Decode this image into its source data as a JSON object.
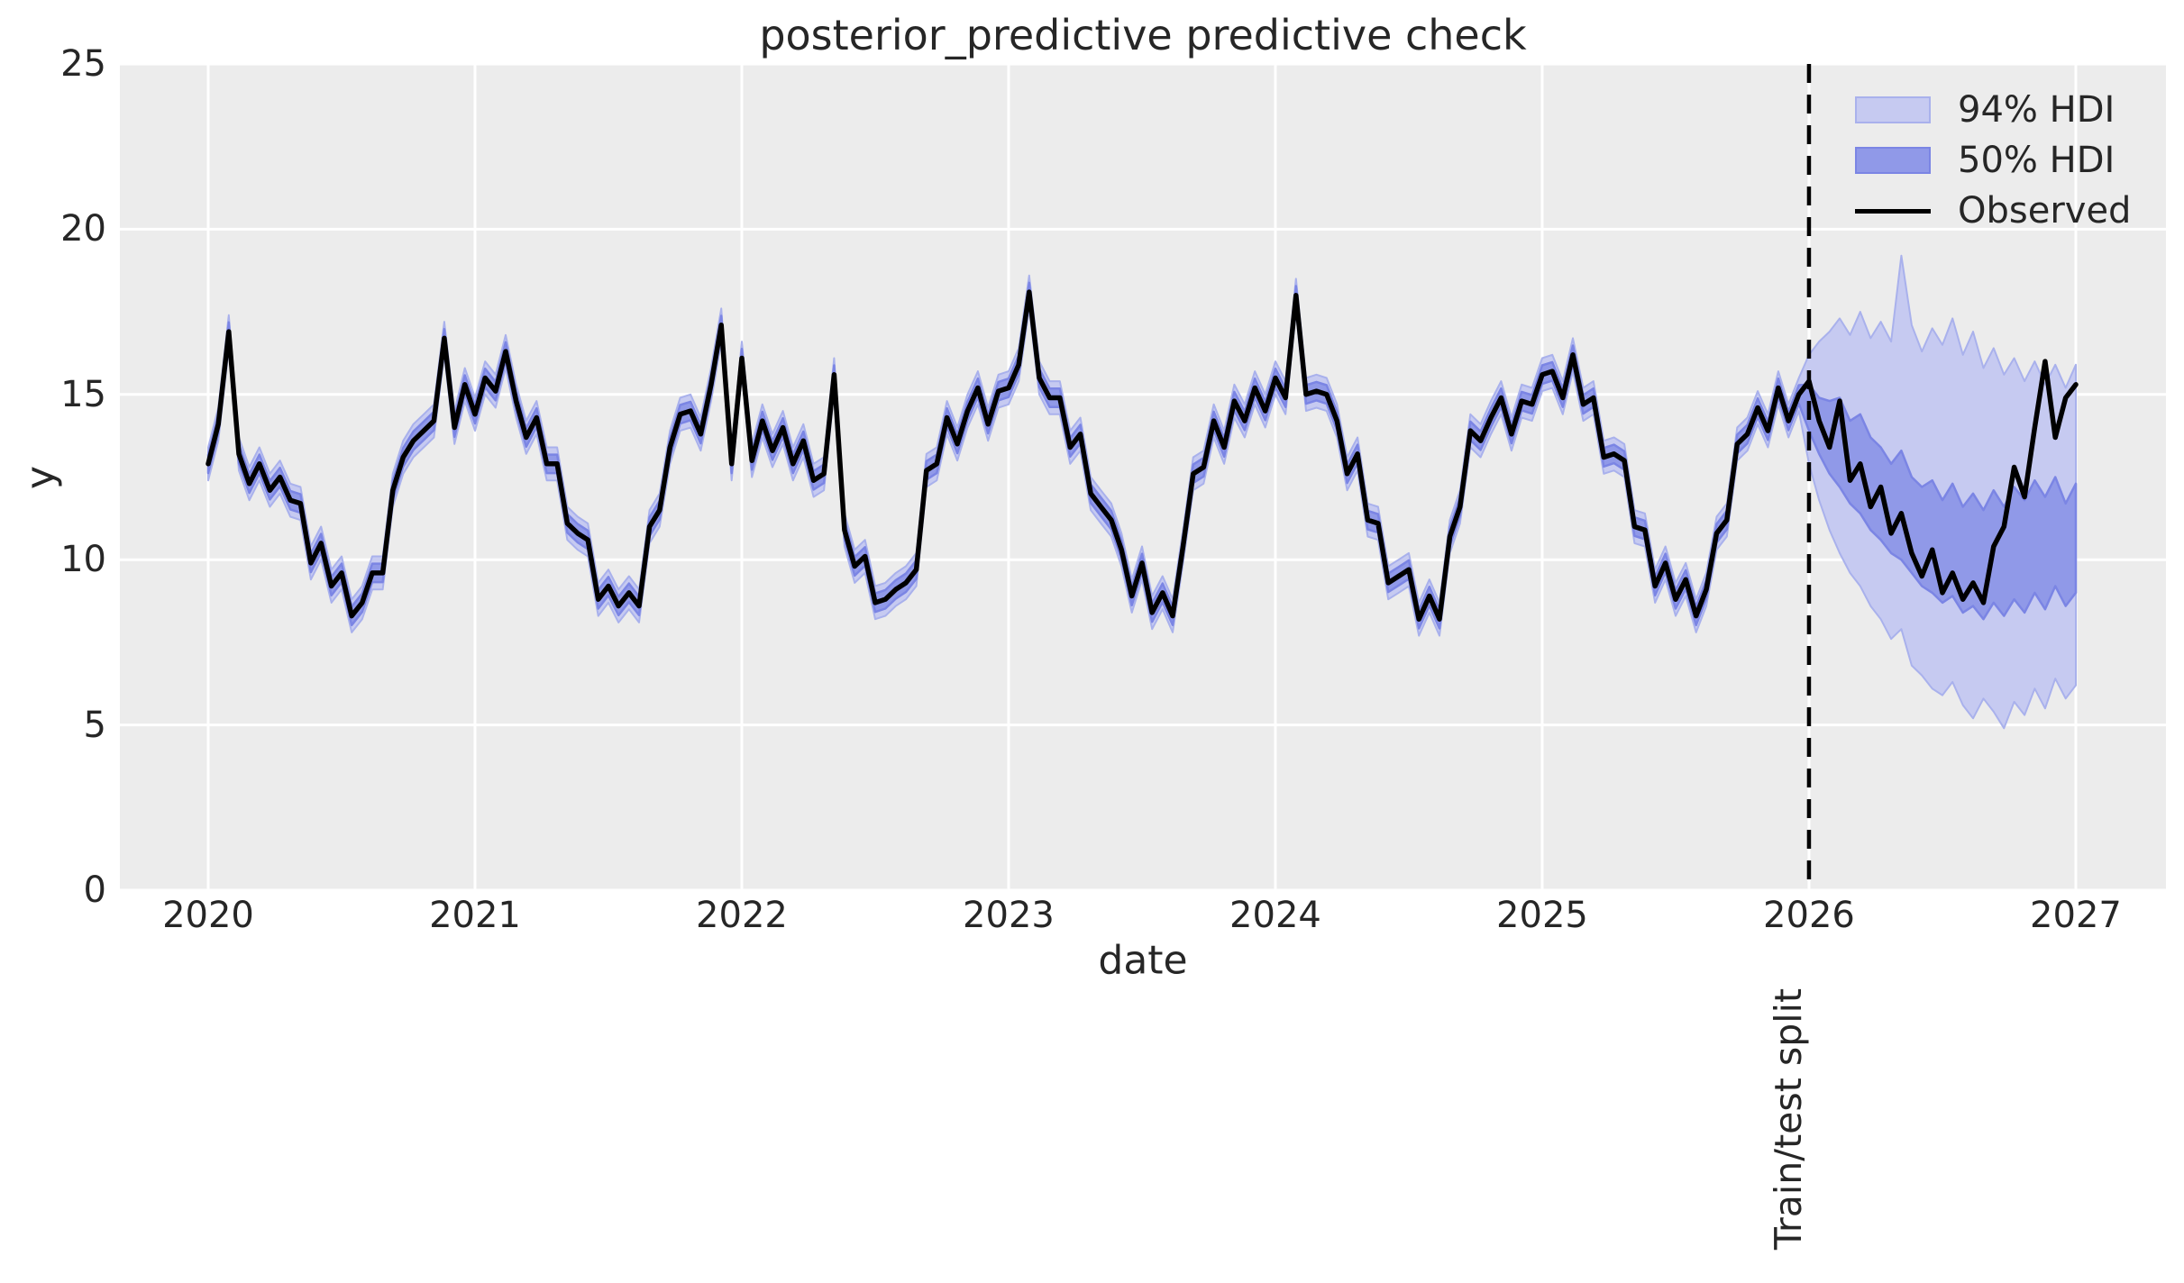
{
  "title": "posterior_predictive predictive check",
  "axes": {
    "xlabel": "date",
    "ylabel": "y",
    "xticks": [
      2020,
      2021,
      2022,
      2023,
      2024,
      2025,
      2026,
      2027
    ],
    "yticks": [
      0,
      5,
      10,
      15,
      20,
      25
    ]
  },
  "split": {
    "x": 2026,
    "label": "Train/test split"
  },
  "legend": {
    "items": [
      {
        "label": "94% HDI",
        "type": "patch",
        "fill": "#c6caf1",
        "edge": "#a9b1ec"
      },
      {
        "label": "50% HDI",
        "type": "patch",
        "fill": "#9099e8",
        "edge": "#7b85e4"
      },
      {
        "label": "Observed",
        "type": "line",
        "color": "#000000"
      }
    ]
  },
  "colors": {
    "figure_bg": "#ffffff",
    "panel_bg": "#ececec",
    "grid": "#ffffff",
    "text": "#262626",
    "observed": "#000000",
    "hdi94_fill": "#c6caf1",
    "hdi94_edge": "#a9b1ec",
    "hdi50_fill": "#9099e8",
    "hdi50_edge": "#7b85e4",
    "split_line": "#000000"
  },
  "chart_data": {
    "type": "line",
    "title": "posterior_predictive predictive check",
    "xlabel": "date",
    "ylabel": "y",
    "xlim": [
      2019.669,
      2027.338
    ],
    "ylim": [
      0,
      25
    ],
    "grid": true,
    "legend_position": "upper right",
    "train_test_split_x": 2026,
    "x": [
      2020.0,
      2020.038,
      2020.077,
      2020.115,
      2020.154,
      2020.192,
      2020.231,
      2020.269,
      2020.308,
      2020.346,
      2020.385,
      2020.423,
      2020.462,
      2020.5,
      2020.538,
      2020.577,
      2020.615,
      2020.654,
      2020.692,
      2020.731,
      2020.769,
      2020.808,
      2020.846,
      2020.885,
      2020.923,
      2020.962,
      2021.0,
      2021.038,
      2021.077,
      2021.115,
      2021.154,
      2021.192,
      2021.231,
      2021.269,
      2021.308,
      2021.346,
      2021.385,
      2021.423,
      2021.462,
      2021.5,
      2021.538,
      2021.577,
      2021.615,
      2021.654,
      2021.692,
      2021.731,
      2021.769,
      2021.808,
      2021.846,
      2021.885,
      2021.923,
      2021.962,
      2022.0,
      2022.038,
      2022.077,
      2022.115,
      2022.154,
      2022.192,
      2022.231,
      2022.269,
      2022.308,
      2022.346,
      2022.385,
      2022.423,
      2022.462,
      2022.5,
      2022.538,
      2022.577,
      2022.615,
      2022.654,
      2022.692,
      2022.731,
      2022.769,
      2022.808,
      2022.846,
      2022.885,
      2022.923,
      2022.962,
      2023.0,
      2023.038,
      2023.077,
      2023.115,
      2023.154,
      2023.192,
      2023.231,
      2023.269,
      2023.308,
      2023.346,
      2023.385,
      2023.423,
      2023.462,
      2023.5,
      2023.538,
      2023.577,
      2023.615,
      2023.654,
      2023.692,
      2023.731,
      2023.769,
      2023.808,
      2023.846,
      2023.885,
      2023.923,
      2023.962,
      2024.0,
      2024.038,
      2024.077,
      2024.115,
      2024.154,
      2024.192,
      2024.231,
      2024.269,
      2024.308,
      2024.346,
      2024.385,
      2024.423,
      2024.462,
      2024.5,
      2024.538,
      2024.577,
      2024.615,
      2024.654,
      2024.692,
      2024.731,
      2024.769,
      2024.808,
      2024.846,
      2024.885,
      2024.923,
      2024.962,
      2025.0,
      2025.038,
      2025.077,
      2025.115,
      2025.154,
      2025.192,
      2025.231,
      2025.269,
      2025.308,
      2025.346,
      2025.385,
      2025.423,
      2025.462,
      2025.5,
      2025.538,
      2025.577,
      2025.615,
      2025.654,
      2025.692,
      2025.731,
      2025.769,
      2025.808,
      2025.846,
      2025.885,
      2025.923,
      2025.962,
      2026.0,
      2026.038,
      2026.077,
      2026.115,
      2026.154,
      2026.192,
      2026.231,
      2026.269,
      2026.308,
      2026.346,
      2026.385,
      2026.423,
      2026.462,
      2026.5,
      2026.538,
      2026.577,
      2026.615,
      2026.654,
      2026.692,
      2026.731,
      2026.769,
      2026.808,
      2026.846,
      2026.885,
      2026.923,
      2026.962,
      2027.0
    ],
    "series": [
      {
        "name": "Observed",
        "values": [
          12.9,
          14.1,
          16.9,
          13.2,
          12.3,
          12.9,
          12.1,
          12.5,
          11.8,
          11.7,
          9.9,
          10.5,
          9.2,
          9.6,
          8.3,
          8.7,
          9.6,
          9.6,
          12.1,
          13.1,
          13.6,
          13.9,
          14.2,
          16.7,
          14.0,
          15.3,
          14.4,
          15.5,
          15.1,
          16.3,
          14.8,
          13.7,
          14.3,
          12.9,
          12.9,
          11.1,
          10.8,
          10.6,
          8.8,
          9.2,
          8.6,
          9.0,
          8.6,
          11.0,
          11.5,
          13.4,
          14.4,
          14.5,
          13.8,
          15.3,
          17.1,
          12.9,
          16.1,
          13.0,
          14.2,
          13.3,
          14.0,
          12.9,
          13.6,
          12.4,
          12.6,
          15.6,
          10.9,
          9.8,
          10.1,
          8.7,
          8.8,
          9.1,
          9.3,
          9.7,
          12.7,
          12.9,
          14.3,
          13.5,
          14.5,
          15.2,
          14.1,
          15.1,
          15.2,
          15.9,
          18.1,
          15.5,
          14.9,
          14.9,
          13.4,
          13.8,
          12.0,
          11.6,
          11.2,
          10.3,
          8.9,
          9.9,
          8.4,
          9.0,
          8.3,
          10.4,
          12.6,
          12.8,
          14.2,
          13.4,
          14.8,
          14.2,
          15.2,
          14.5,
          15.5,
          14.9,
          18.0,
          15.0,
          15.1,
          15.0,
          14.2,
          12.6,
          13.2,
          11.2,
          11.1,
          9.3,
          9.5,
          9.7,
          8.2,
          8.9,
          8.2,
          10.7,
          11.6,
          13.9,
          13.6,
          14.3,
          14.9,
          13.8,
          14.8,
          14.7,
          15.6,
          15.7,
          14.9,
          16.2,
          14.7,
          14.9,
          13.1,
          13.2,
          13.0,
          11.0,
          10.9,
          9.2,
          9.9,
          8.8,
          9.4,
          8.3,
          9.1,
          10.8,
          11.2,
          13.5,
          13.8,
          14.6,
          13.9,
          15.2,
          14.2,
          15.0,
          15.4,
          14.2,
          13.4,
          14.8,
          12.4,
          12.9,
          11.6,
          12.2,
          10.8,
          11.4,
          10.2,
          9.5,
          10.3,
          9.0,
          9.6,
          8.8,
          9.3,
          8.7,
          10.4,
          11.0,
          12.8,
          11.9,
          14.0,
          16.0,
          13.7,
          14.9,
          15.3
        ]
      }
    ],
    "hdi_train": {
      "n_points": 156,
      "hdi94_halfwidth": 0.5,
      "hdi50_halfwidth": 0.28
    },
    "hdi_forecast": {
      "start_index": 156,
      "hdi94_upper": [
        16.2,
        16.6,
        16.9,
        17.3,
        16.8,
        17.5,
        16.7,
        17.2,
        16.6,
        19.2,
        17.1,
        16.3,
        17.0,
        16.5,
        17.3,
        16.2,
        16.9,
        15.8,
        16.4,
        15.6,
        16.1,
        15.4,
        16.0,
        15.3,
        15.9,
        15.2,
        15.9
      ],
      "hdi50_upper": [
        15.3,
        14.9,
        14.8,
        14.9,
        14.2,
        14.4,
        13.7,
        13.4,
        12.9,
        13.3,
        12.5,
        12.2,
        12.4,
        11.8,
        12.3,
        11.6,
        12.0,
        11.5,
        12.1,
        11.6,
        12.2,
        11.8,
        12.4,
        11.9,
        12.5,
        11.7,
        12.3
      ],
      "hdi50_lower": [
        13.9,
        13.2,
        12.6,
        12.2,
        11.7,
        11.4,
        10.9,
        10.6,
        10.2,
        10.0,
        9.6,
        9.2,
        9.0,
        8.7,
        8.9,
        8.4,
        8.6,
        8.2,
        8.7,
        8.3,
        8.8,
        8.4,
        9.0,
        8.5,
        9.2,
        8.6,
        9.0
      ],
      "hdi94_lower": [
        12.9,
        11.8,
        10.9,
        10.2,
        9.6,
        9.2,
        8.6,
        8.2,
        7.6,
        7.9,
        6.8,
        6.5,
        6.1,
        5.9,
        6.3,
        5.6,
        5.2,
        5.8,
        5.4,
        4.9,
        5.7,
        5.3,
        6.1,
        5.5,
        6.4,
        5.8,
        6.2
      ]
    }
  }
}
